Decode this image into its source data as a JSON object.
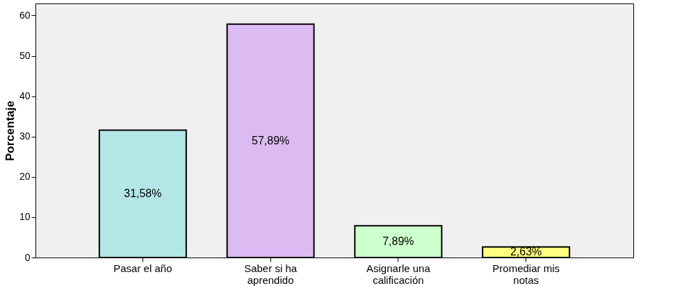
{
  "chart_data": {
    "type": "bar",
    "ylabel": "Porcentaje",
    "categories": [
      "Pasar el año",
      "Saber si ha aprendido",
      "Asignarle una calificación",
      "Promediar mis notas"
    ],
    "values": [
      31.58,
      57.89,
      7.89,
      2.63
    ],
    "colors": [
      "#b3e6e6",
      "#dcbaf2",
      "#ccffcc",
      "#ffff80"
    ],
    "value_labels": [
      "31,58%",
      "57,89%",
      "7,89%",
      "2,63%"
    ],
    "ylim": [
      0,
      63
    ],
    "yticks": [
      0,
      10,
      20,
      30,
      40,
      50,
      60
    ],
    "grid": false
  }
}
